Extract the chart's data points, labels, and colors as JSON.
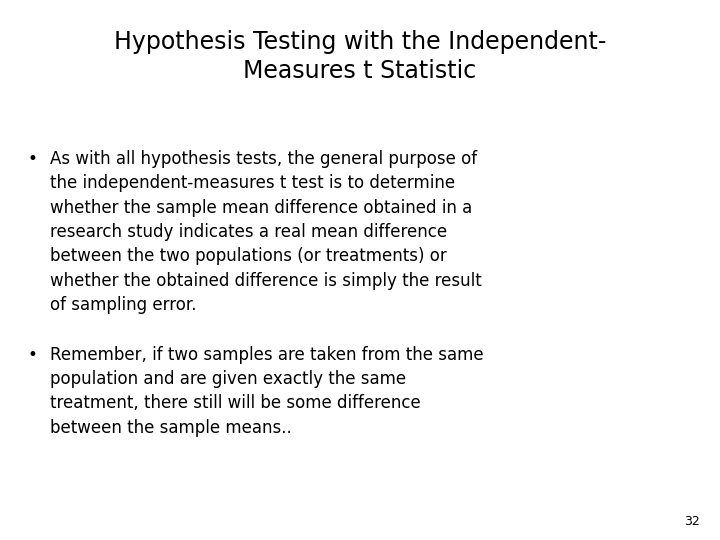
{
  "title_line1": "Hypothesis Testing with the Independent-",
  "title_line2": "Measures t Statistic",
  "bullet1_lines": [
    "As with all hypothesis tests, the general purpose of",
    "the independent-measures t test is to determine",
    "whether the sample mean difference obtained in a",
    "research study indicates a real mean difference",
    "between the two populations (or treatments) or",
    "whether the obtained difference is simply the result",
    "of sampling error."
  ],
  "bullet2_lines": [
    "Remember, if two samples are taken from the same",
    "population and are given exactly the same",
    "treatment, there still will be some difference",
    "between the sample means.."
  ],
  "page_number": "32",
  "bg_color": "#ffffff",
  "text_color": "#000000",
  "title_fontsize": 17,
  "body_fontsize": 12,
  "page_num_fontsize": 9
}
